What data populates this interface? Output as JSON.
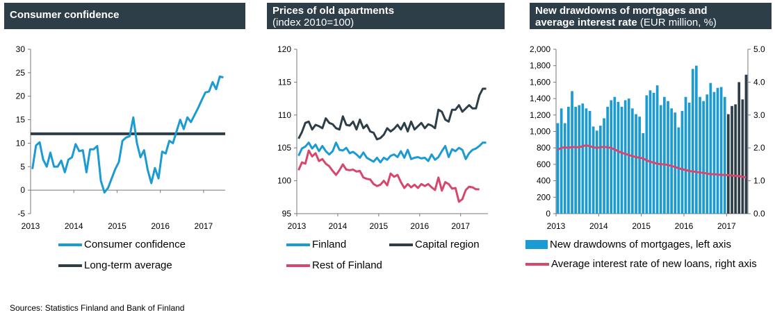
{
  "colors": {
    "header_bg": "#2d3e48",
    "light_blue": "#1b9bd1",
    "dark": "#2d3e48",
    "red": "#d6476b"
  },
  "source": "Sources: Statistics Finland and Bank of Finland",
  "panels": {
    "p1": {
      "title": "Consumer confidence",
      "legend": [
        "Consumer confidence",
        "Long-term average"
      ]
    },
    "p2": {
      "title": "Prices of old apartments",
      "subtitle": "(index 2010=100)",
      "legend": [
        "Finland",
        "Capital region",
        "Rest of Finland"
      ]
    },
    "p3": {
      "title_line1": "New drawdowns of mortgages and",
      "title_line2_bold": "average interest rate",
      "title_line2_rest": " (EUR million, %)",
      "legend": [
        "New drawdowns of mortgages, left axis",
        "Average interest rate of new loans, right axis"
      ]
    }
  },
  "chart_data": [
    {
      "type": "line",
      "title": "Consumer confidence",
      "x_start": "2013-01",
      "frequency": "monthly",
      "xticks": [
        "2013",
        "2014",
        "2015",
        "2016",
        "2017"
      ],
      "yticks": [
        "-5",
        "0",
        "5",
        "10",
        "15",
        "20",
        "25",
        "30"
      ],
      "ylim": [
        -5,
        30
      ],
      "grid": false,
      "legend_position": "bottom",
      "series": [
        {
          "name": "Consumer confidence",
          "color": "#1b9bd1",
          "values": [
            4.5,
            9.5,
            10.2,
            6.5,
            5.0,
            8.0,
            5.0,
            5.0,
            6.3,
            3.8,
            6.5,
            7.0,
            9.8,
            8.3,
            8.5,
            3.8,
            8.7,
            8.7,
            9.4,
            2.0,
            -0.5,
            0.5,
            2.5,
            4.5,
            6.0,
            10.5,
            11.2,
            11.5,
            15.5,
            10.0,
            7.0,
            8.5,
            4.3,
            1.5,
            4.7,
            2.5,
            8.2,
            7.8,
            10.5,
            10.0,
            12.5,
            15.0,
            13.0,
            15.5,
            14.5,
            16.0,
            17.5,
            19.2,
            20.8,
            21.0,
            23.0,
            21.5,
            24.2,
            24.0
          ]
        },
        {
          "name": "Long-term average",
          "color": "#2d3e48",
          "values": [
            12,
            12
          ]
        }
      ]
    },
    {
      "type": "line",
      "title": "Prices of old apartments",
      "subtitle": "(index 2010=100)",
      "x_start": "2013-01",
      "frequency": "monthly",
      "xticks": [
        "2013",
        "2014",
        "2015",
        "2016",
        "2017"
      ],
      "yticks": [
        "95",
        "100",
        "105",
        "110",
        "115",
        "120"
      ],
      "ylim": [
        95,
        120
      ],
      "grid": false,
      "legend_position": "bottom",
      "series": [
        {
          "name": "Finland",
          "color": "#1b9bd1",
          "values": [
            103.8,
            104.9,
            105.2,
            105.8,
            104.9,
            105.5,
            104.5,
            105.3,
            104.5,
            104.0,
            104.5,
            105.8,
            104.7,
            104.6,
            105.0,
            104.2,
            104.4,
            104.0,
            103.5,
            104.3,
            103.5,
            103.2,
            102.9,
            103.5,
            102.8,
            103.5,
            103.2,
            103.8,
            104.0,
            103.6,
            104.5,
            103.5,
            104.7,
            103.3,
            103.5,
            103.6,
            103.4,
            103.5,
            103.0,
            104.0,
            103.2,
            103.6,
            104.5,
            105.3,
            103.6,
            104.8,
            104.5,
            105.0,
            104.7,
            103.3,
            104.2,
            104.7,
            104.9,
            105.3,
            105.8,
            105.8
          ]
        },
        {
          "name": "Capital region",
          "color": "#2d3e48",
          "values": [
            106.4,
            107.4,
            108.8,
            109.0,
            107.8,
            108.5,
            108.3,
            108.0,
            109.5,
            108.8,
            108.6,
            108.0,
            107.8,
            109.8,
            108.5,
            108.4,
            109.0,
            107.8,
            109.3,
            108.0,
            108.5,
            107.5,
            107.3,
            106.3,
            106.5,
            107.0,
            108.0,
            107.5,
            107.9,
            108.5,
            107.8,
            108.8,
            107.5,
            109.0,
            107.8,
            108.3,
            108.8,
            108.0,
            108.6,
            108.4,
            108.0,
            110.8,
            110.5,
            109.3,
            109.0,
            110.8,
            110.8,
            111.5,
            110.5,
            111.0,
            111.5,
            111.0,
            111.0,
            113.0,
            114.0,
            114.0
          ]
        },
        {
          "name": "Rest of Finland",
          "color": "#d6476b",
          "values": [
            101.6,
            102.8,
            102.6,
            104.6,
            103.7,
            104.2,
            103.0,
            103.3,
            102.6,
            102.2,
            101.5,
            100.9,
            101.6,
            102.5,
            101.7,
            101.6,
            101.7,
            101.4,
            101.5,
            100.5,
            100.3,
            100.2,
            99.5,
            99.2,
            99.4,
            100.0,
            99.3,
            101.1,
            100.6,
            100.9,
            99.8,
            98.9,
            99.5,
            99.0,
            99.4,
            98.9,
            99.5,
            99.2,
            99.5,
            99.0,
            98.6,
            100.5,
            98.5,
            99.8,
            99.5,
            98.8,
            98.9,
            96.8,
            97.2,
            98.6,
            99.1,
            99.0,
            98.7,
            98.7
          ]
        }
      ]
    },
    {
      "type": "bar",
      "title": "New drawdowns of mortgages and average interest rate",
      "subtitle": "(EUR million, %)",
      "x_start": "2013-01",
      "frequency": "monthly",
      "xticks": [
        "2013",
        "2014",
        "2015",
        "2016",
        "2017"
      ],
      "yticks_left": [
        "0",
        "200",
        "400",
        "600",
        "800",
        "1,000",
        "1,200",
        "1,400",
        "1,600",
        "1,800",
        "2,000"
      ],
      "yticks_right": [
        "0.0",
        "1.0",
        "2.0",
        "3.0",
        "4.0",
        "5.0"
      ],
      "ylim_left": [
        0,
        2000
      ],
      "ylim_right": [
        0,
        5
      ],
      "grid": false,
      "legend_position": "bottom",
      "highlight_from_index": 48,
      "series": [
        {
          "name": "New drawdowns of mortgages, left axis",
          "axis": "left",
          "color": "#1b9bd1",
          "highlight_color": "#2d3e48",
          "values": [
            1100,
            1280,
            1100,
            1300,
            1490,
            1300,
            1320,
            1340,
            1280,
            1250,
            1060,
            1010,
            1070,
            1160,
            1300,
            1380,
            1420,
            1360,
            1300,
            1380,
            1400,
            1280,
            1210,
            1180,
            980,
            1440,
            1500,
            1470,
            1560,
            1320,
            1420,
            1370,
            1280,
            1230,
            1050,
            1250,
            1420,
            1350,
            1760,
            1800,
            1420,
            1370,
            1450,
            1590,
            1480,
            1530,
            1540,
            1420,
            1210,
            1310,
            1330,
            1600,
            1390,
            1690
          ]
        },
        {
          "name": "Average interest rate of new loans, right axis",
          "axis": "right",
          "color": "#d6476b",
          "values": [
            1.95,
            2.0,
            2.02,
            2.0,
            2.03,
            2.02,
            2.02,
            2.05,
            2.08,
            2.05,
            2.02,
            2.0,
            2.02,
            2.03,
            2.02,
            2.0,
            1.95,
            1.9,
            1.85,
            1.82,
            1.78,
            1.75,
            1.72,
            1.7,
            1.68,
            1.62,
            1.58,
            1.55,
            1.52,
            1.5,
            1.5,
            1.48,
            1.45,
            1.42,
            1.38,
            1.35,
            1.33,
            1.3,
            1.28,
            1.27,
            1.25,
            1.24,
            1.22,
            1.2,
            1.2,
            1.19,
            1.18,
            1.18,
            1.17,
            1.16,
            1.15,
            1.14,
            1.12,
            1.1
          ]
        }
      ]
    }
  ]
}
